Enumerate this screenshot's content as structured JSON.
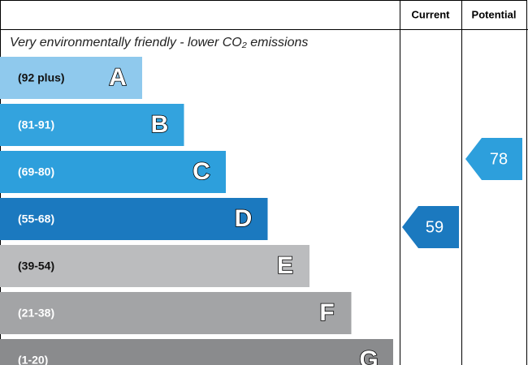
{
  "header": {
    "current": "Current",
    "potential": "Potential"
  },
  "subtitle": "Very environmentally friendly - lower CO₂ emissions",
  "bands": [
    {
      "range": "(92 plus)",
      "letter": "A",
      "color": "#8fc9ed"
    },
    {
      "range": "(81-91)",
      "letter": "B",
      "color": "#33a3de"
    },
    {
      "range": "(69-80)",
      "letter": "C",
      "color": "#2d9fdc"
    },
    {
      "range": "(55-68)",
      "letter": "D",
      "color": "#1b79bf"
    },
    {
      "range": "(39-54)",
      "letter": "E",
      "color": "#bbbcbe"
    },
    {
      "range": "(21-38)",
      "letter": "F",
      "color": "#a3a4a6"
    },
    {
      "range": "(1-20)",
      "letter": "G",
      "color": "#8a8b8d"
    }
  ],
  "current": {
    "value": "59"
  },
  "potential": {
    "value": "78"
  }
}
